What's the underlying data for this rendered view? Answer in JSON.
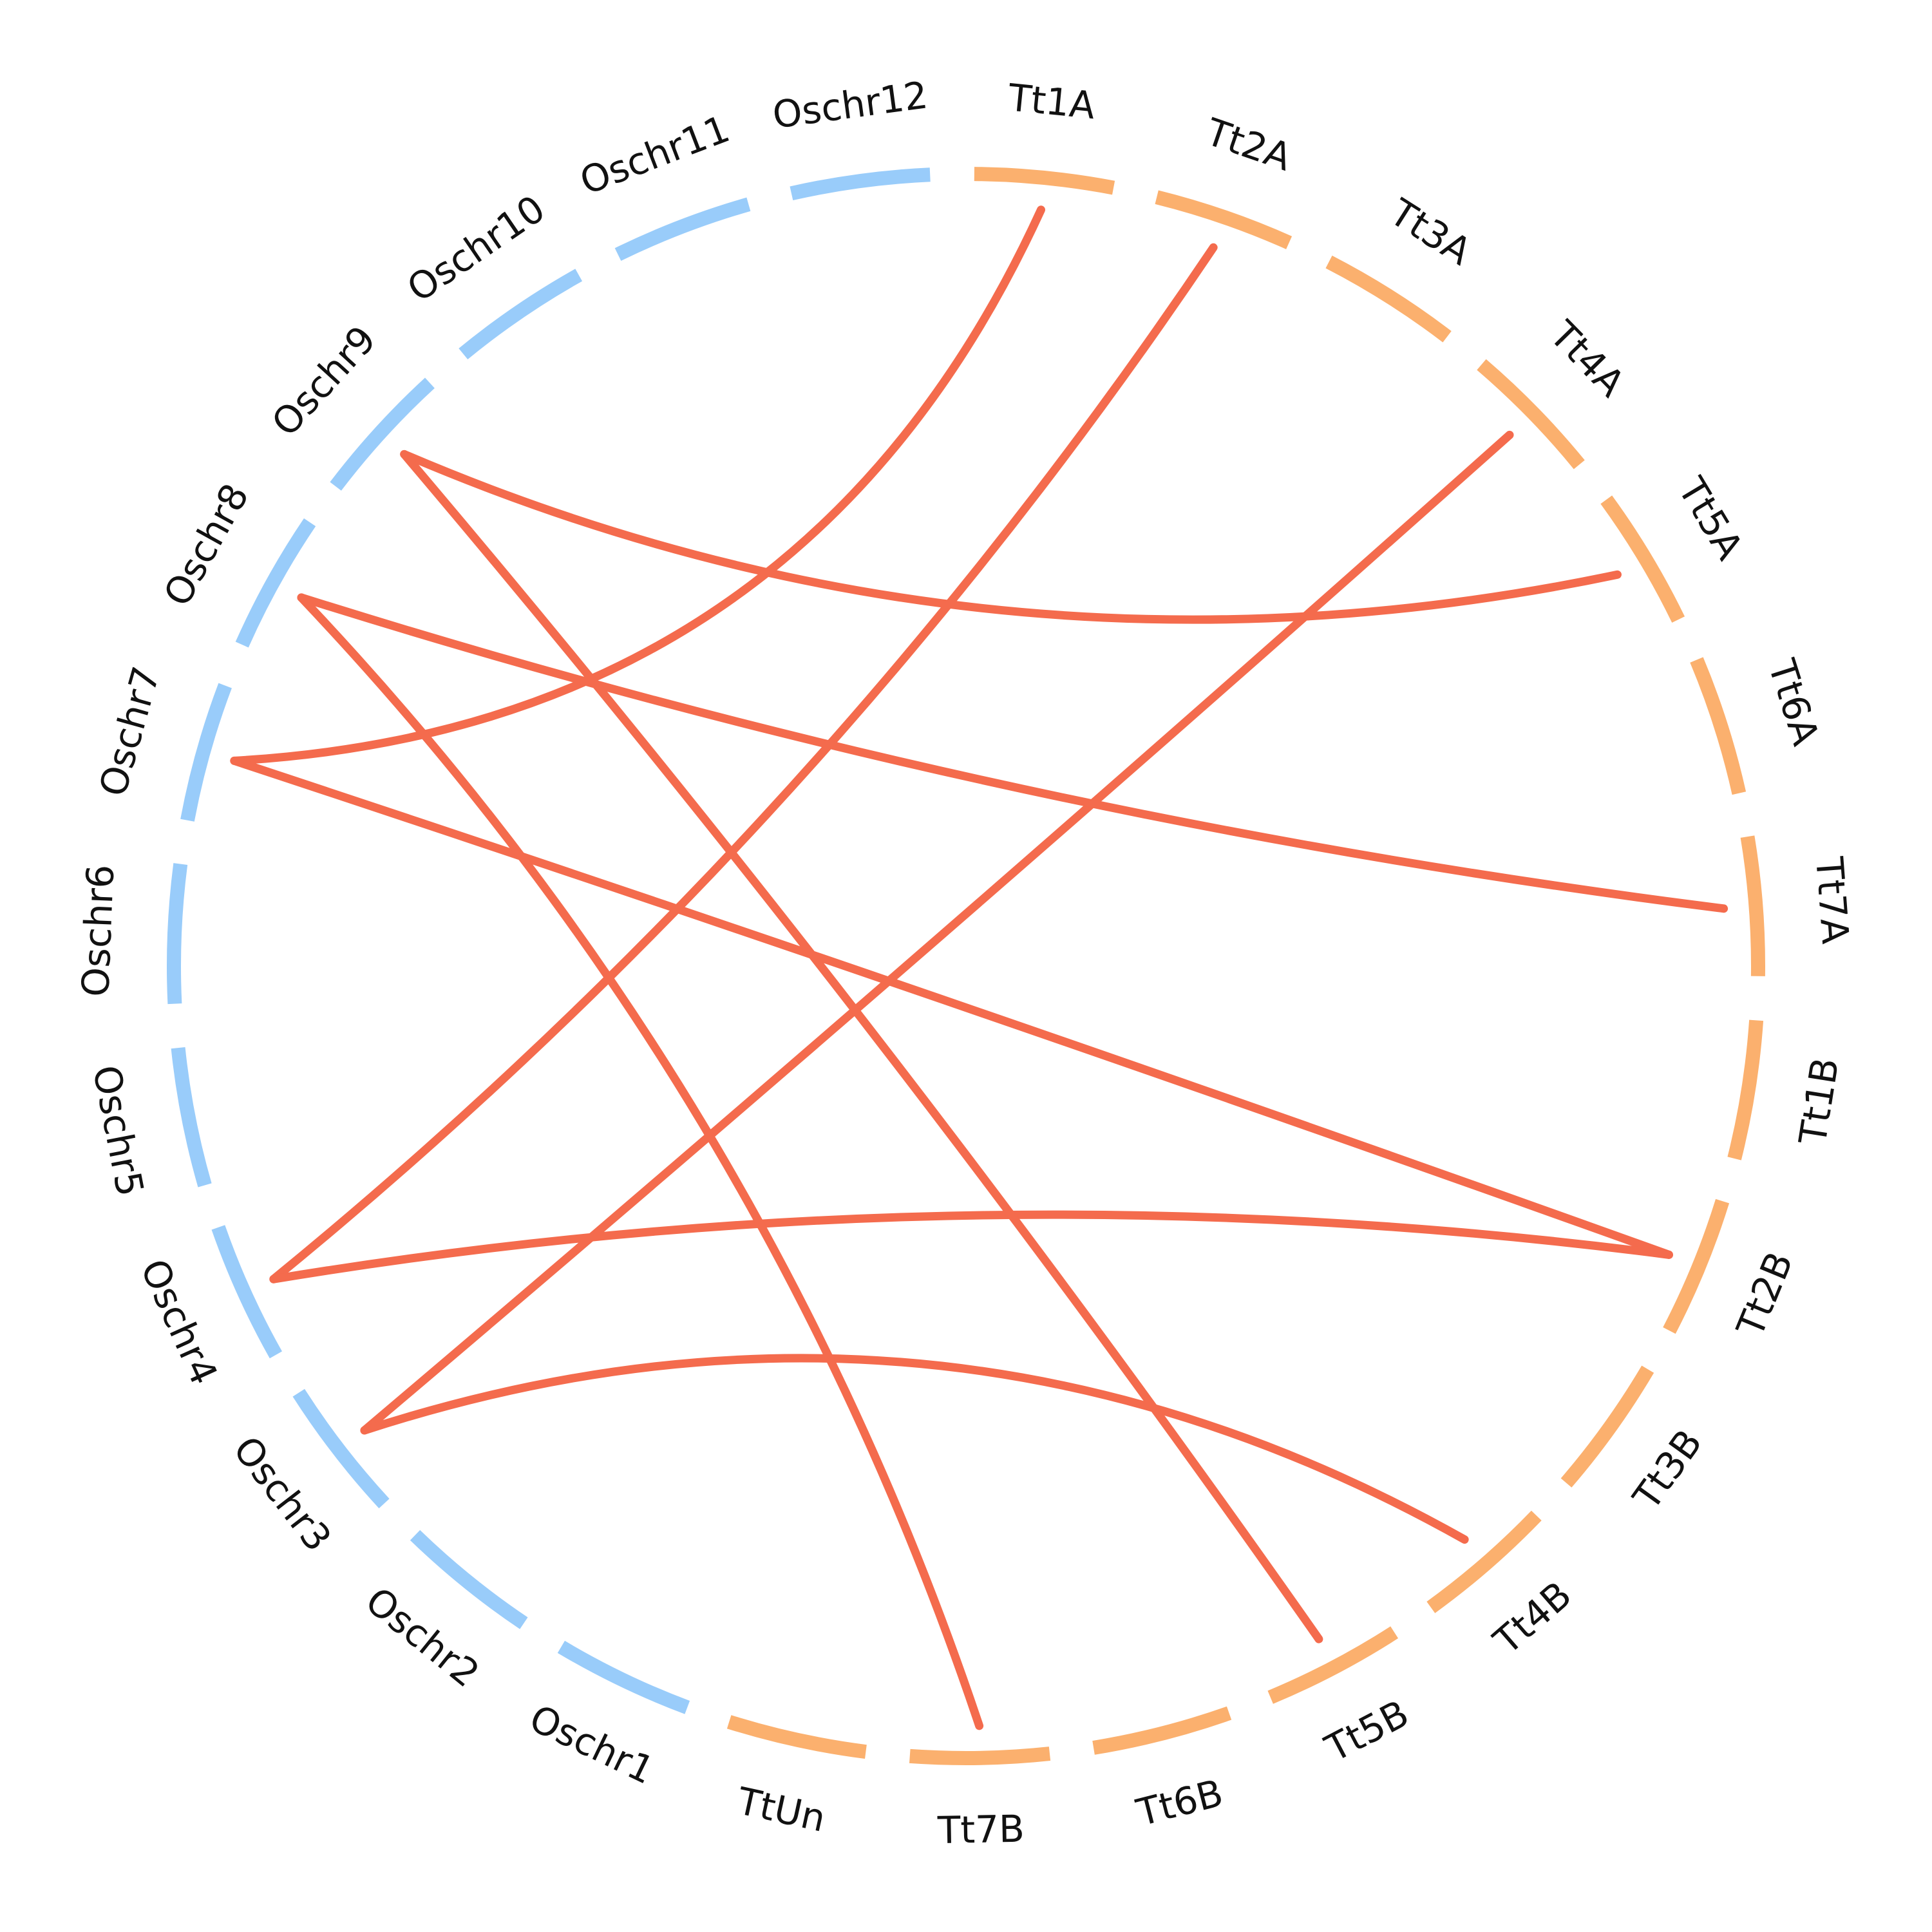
{
  "colors": {
    "rice_segment": "#99ccfa",
    "wheat_segment": "#fbb06e",
    "link": "#f46b4d",
    "label": "#111111"
  },
  "chromosomes": [
    {
      "label": "Tt1A",
      "group": "wheat"
    },
    {
      "label": "Tt2A",
      "group": "wheat"
    },
    {
      "label": "Tt3A",
      "group": "wheat"
    },
    {
      "label": "Tt4A",
      "group": "wheat"
    },
    {
      "label": "Tt5A",
      "group": "wheat"
    },
    {
      "label": "Tt6A",
      "group": "wheat"
    },
    {
      "label": "Tt7A",
      "group": "wheat"
    },
    {
      "label": "Tt1B",
      "group": "wheat"
    },
    {
      "label": "Tt2B",
      "group": "wheat"
    },
    {
      "label": "Tt3B",
      "group": "wheat"
    },
    {
      "label": "Tt4B",
      "group": "wheat"
    },
    {
      "label": "Tt5B",
      "group": "wheat"
    },
    {
      "label": "Tt6B",
      "group": "wheat"
    },
    {
      "label": "Tt7B",
      "group": "wheat"
    },
    {
      "label": "TtUn",
      "group": "wheat"
    },
    {
      "label": "Oschr1",
      "group": "rice"
    },
    {
      "label": "Oschr2",
      "group": "rice"
    },
    {
      "label": "Oschr3",
      "group": "rice"
    },
    {
      "label": "Oschr4",
      "group": "rice"
    },
    {
      "label": "Oschr5",
      "group": "rice"
    },
    {
      "label": "Oschr6",
      "group": "rice"
    },
    {
      "label": "Oschr7",
      "group": "rice"
    },
    {
      "label": "Oschr8",
      "group": "rice"
    },
    {
      "label": "Oschr9",
      "group": "rice"
    },
    {
      "label": "Oschr10",
      "group": "rice"
    },
    {
      "label": "Oschr11",
      "group": "rice"
    },
    {
      "label": "Oschr12",
      "group": "rice"
    }
  ],
  "links": [
    {
      "from": "Tt1A",
      "to": "Oschr7"
    },
    {
      "from": "Tt2A",
      "to": "Oschr4"
    },
    {
      "from": "Tt4A",
      "to": "Oschr3"
    },
    {
      "from": "Tt5A",
      "to": "Oschr9"
    },
    {
      "from": "Tt7A",
      "to": "Oschr8"
    },
    {
      "from": "Tt2B",
      "to": "Oschr7"
    },
    {
      "from": "Tt2B",
      "to": "Oschr4"
    },
    {
      "from": "Tt4B",
      "to": "Oschr3"
    },
    {
      "from": "Tt5B",
      "to": "Oschr9"
    },
    {
      "from": "Tt7B",
      "to": "Oschr8"
    }
  ]
}
